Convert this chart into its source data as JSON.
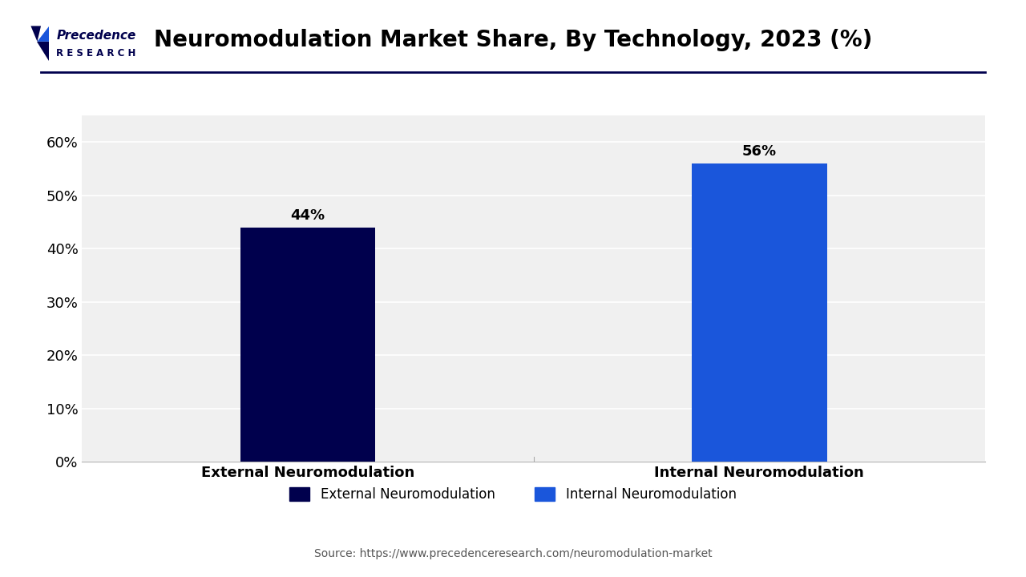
{
  "title": "Neuromodulation Market Share, By Technology, 2023 (%)",
  "categories": [
    "External Neuromodulation",
    "Internal Neuromodulation"
  ],
  "values": [
    44,
    56
  ],
  "bar_colors": [
    "#00004d",
    "#1a56db"
  ],
  "bar_labels": [
    "44%",
    "56%"
  ],
  "ylim": [
    0,
    65
  ],
  "yticks": [
    0,
    10,
    20,
    30,
    40,
    50,
    60
  ],
  "ytick_labels": [
    "0%",
    "10%",
    "20%",
    "30%",
    "40%",
    "50%",
    "60%"
  ],
  "background_color": "#ffffff",
  "plot_bg_color": "#f0f0f0",
  "grid_color": "#ffffff",
  "title_fontsize": 20,
  "tick_fontsize": 13,
  "label_fontsize": 13,
  "bar_label_fontsize": 13,
  "legend_labels": [
    "External Neuromodulation",
    "Internal Neuromodulation"
  ],
  "legend_colors": [
    "#00004d",
    "#1a56db"
  ],
  "source_text": "Source: https://www.precedenceresearch.com/neuromodulation-market",
  "separator_color": "#00004d",
  "top_separator_color": "#00004d",
  "logo_precedence_color": "#00004d",
  "logo_blue_color": "#1a56db"
}
